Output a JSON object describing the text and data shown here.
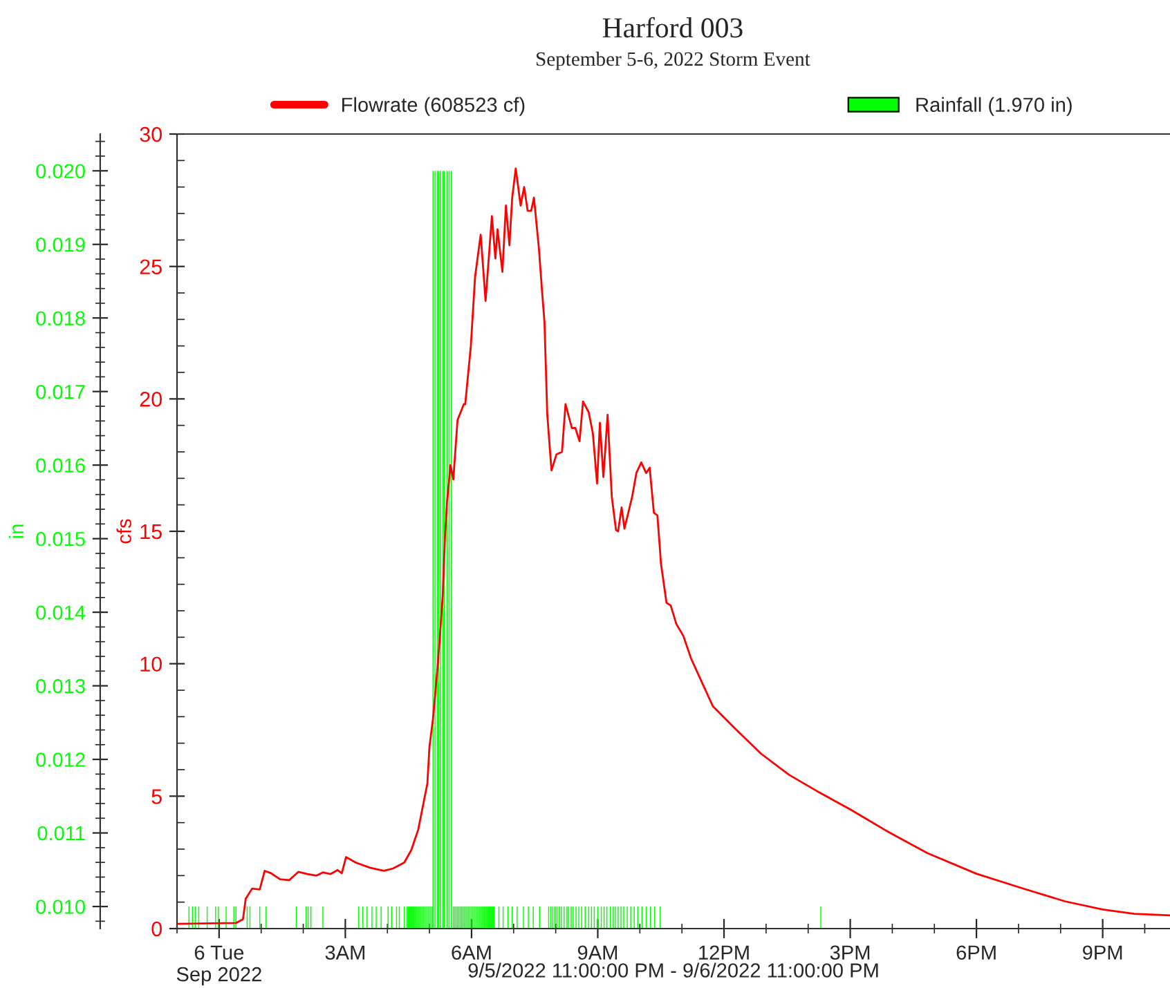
{
  "chart_data": {
    "type": "bar",
    "title": "Harford 003",
    "subtitle": "September 5-6, 2022 Storm Event",
    "xlabel": "9/5/2022 11:00:00 PM - 9/6/2022 11:00:00 PM",
    "ylabel": "in",
    "y2label": "cfs",
    "legend": "top",
    "xlim": [
      "2022-09-05T23:00",
      "2022-09-06T22:36"
    ],
    "xticks": [
      {
        "value": "2022-09-06T00:00",
        "label": "6 Tue\nSep 2022"
      },
      {
        "value": "2022-09-06T03:00",
        "label": "3AM"
      },
      {
        "value": "2022-09-06T06:00",
        "label": "6AM"
      },
      {
        "value": "2022-09-06T09:00",
        "label": "9AM"
      },
      {
        "value": "2022-09-06T12:00",
        "label": "12PM"
      },
      {
        "value": "2022-09-06T15:00",
        "label": "3PM"
      },
      {
        "value": "2022-09-06T18:00",
        "label": "6PM"
      },
      {
        "value": "2022-09-06T21:00",
        "label": "9PM"
      }
    ],
    "ylim": [
      0.0097,
      0.0205
    ],
    "yticks": [
      {
        "value": 0.01,
        "label": "0.010"
      },
      {
        "value": 0.011,
        "label": "0.011"
      },
      {
        "value": 0.012,
        "label": "0.012"
      },
      {
        "value": 0.013,
        "label": "0.013"
      },
      {
        "value": 0.014,
        "label": "0.014"
      },
      {
        "value": 0.015,
        "label": "0.015"
      },
      {
        "value": 0.016,
        "label": "0.016"
      },
      {
        "value": 0.017,
        "label": "0.017"
      },
      {
        "value": 0.018,
        "label": "0.018"
      },
      {
        "value": 0.019,
        "label": "0.019"
      },
      {
        "value": 0.02,
        "label": "0.020"
      }
    ],
    "y2lim": [
      0,
      30
    ],
    "y2ticks": [
      0,
      5,
      10,
      15,
      20,
      25,
      30
    ],
    "series": [
      {
        "name": "Rainfall (1.970 in)",
        "axis": "y",
        "color": "#00ff00",
        "x": [
          "2022-09-05T23:17",
          "2022-09-05T23:22",
          "2022-09-05T23:26",
          "2022-09-05T23:31",
          "2022-09-05T23:43",
          "2022-09-05T23:55",
          "2022-09-05T23:59",
          "2022-09-06T00:10",
          "2022-09-06T00:21",
          "2022-09-06T00:24",
          "2022-09-06T00:40",
          "2022-09-06T00:44",
          "2022-09-06T00:58",
          "2022-09-06T01:07",
          "2022-09-06T01:50",
          "2022-09-06T02:04",
          "2022-09-06T02:07",
          "2022-09-06T02:11",
          "2022-09-06T02:28",
          "2022-09-06T03:19",
          "2022-09-06T03:25",
          "2022-09-06T03:31",
          "2022-09-06T03:38",
          "2022-09-06T03:44",
          "2022-09-06T03:51",
          "2022-09-06T04:01",
          "2022-09-06T04:06",
          "2022-09-06T04:13",
          "2022-09-06T04:17",
          "2022-09-06T04:24",
          "2022-09-06T04:28",
          "2022-09-06T04:30",
          "2022-09-06T04:32",
          "2022-09-06T04:34",
          "2022-09-06T04:36",
          "2022-09-06T04:38",
          "2022-09-06T04:40",
          "2022-09-06T04:42",
          "2022-09-06T04:44",
          "2022-09-06T04:46",
          "2022-09-06T04:48",
          "2022-09-06T04:50",
          "2022-09-06T04:52",
          "2022-09-06T04:54",
          "2022-09-06T04:56",
          "2022-09-06T04:58",
          "2022-09-06T05:00",
          "2022-09-06T05:02",
          "2022-09-06T05:04",
          "2022-09-06T05:05",
          "2022-09-06T05:08",
          "2022-09-06T05:11",
          "2022-09-06T05:13",
          "2022-09-06T05:16",
          "2022-09-06T05:19",
          "2022-09-06T05:21",
          "2022-09-06T05:25",
          "2022-09-06T05:28",
          "2022-09-06T05:31",
          "2022-09-06T05:34",
          "2022-09-06T05:36",
          "2022-09-06T05:38",
          "2022-09-06T05:40",
          "2022-09-06T05:42",
          "2022-09-06T05:44",
          "2022-09-06T05:46",
          "2022-09-06T05:48",
          "2022-09-06T05:50",
          "2022-09-06T05:52",
          "2022-09-06T05:54",
          "2022-09-06T05:56",
          "2022-09-06T05:58",
          "2022-09-06T06:00",
          "2022-09-06T06:02",
          "2022-09-06T06:04",
          "2022-09-06T06:06",
          "2022-09-06T06:08",
          "2022-09-06T06:10",
          "2022-09-06T06:12",
          "2022-09-06T06:14",
          "2022-09-06T06:16",
          "2022-09-06T06:18",
          "2022-09-06T06:20",
          "2022-09-06T06:22",
          "2022-09-06T06:24",
          "2022-09-06T06:26",
          "2022-09-06T06:28",
          "2022-09-06T06:30",
          "2022-09-06T06:32",
          "2022-09-06T06:39",
          "2022-09-06T06:45",
          "2022-09-06T06:52",
          "2022-09-06T06:58",
          "2022-09-06T07:05",
          "2022-09-06T07:14",
          "2022-09-06T07:21",
          "2022-09-06T07:28",
          "2022-09-06T07:37",
          "2022-09-06T07:50",
          "2022-09-06T07:53",
          "2022-09-06T07:56",
          "2022-09-06T07:59",
          "2022-09-06T08:02",
          "2022-09-06T08:05",
          "2022-09-06T08:08",
          "2022-09-06T08:12",
          "2022-09-06T08:16",
          "2022-09-06T08:18",
          "2022-09-06T08:22",
          "2022-09-06T08:25",
          "2022-09-06T08:29",
          "2022-09-06T08:33",
          "2022-09-06T08:37",
          "2022-09-06T08:42",
          "2022-09-06T08:47",
          "2022-09-06T08:51",
          "2022-09-06T08:55",
          "2022-09-06T09:00",
          "2022-09-06T09:05",
          "2022-09-06T09:09",
          "2022-09-06T09:13",
          "2022-09-06T09:18",
          "2022-09-06T09:22",
          "2022-09-06T09:25",
          "2022-09-06T09:29",
          "2022-09-06T09:33",
          "2022-09-06T09:37",
          "2022-09-06T09:42",
          "2022-09-06T09:47",
          "2022-09-06T09:52",
          "2022-09-06T09:57",
          "2022-09-06T10:03",
          "2022-09-06T10:09",
          "2022-09-06T10:15",
          "2022-09-06T10:21",
          "2022-09-06T10:29",
          "2022-09-06T14:18"
        ],
        "values": [
          0.01,
          0.01,
          0.01,
          0.01,
          0.01,
          0.01,
          0.01,
          0.01,
          0.01,
          0.01,
          0.01,
          0.01,
          0.01,
          0.01,
          0.01,
          0.01,
          0.01,
          0.01,
          0.01,
          0.01,
          0.01,
          0.01,
          0.01,
          0.01,
          0.01,
          0.01,
          0.01,
          0.01,
          0.01,
          0.01,
          0.01,
          0.01,
          0.01,
          0.01,
          0.01,
          0.01,
          0.01,
          0.01,
          0.01,
          0.01,
          0.01,
          0.01,
          0.01,
          0.01,
          0.01,
          0.01,
          0.01,
          0.01,
          0.01,
          0.02,
          0.02,
          0.02,
          0.02,
          0.02,
          0.02,
          0.02,
          0.02,
          0.02,
          0.02,
          0.01,
          0.01,
          0.01,
          0.01,
          0.01,
          0.01,
          0.01,
          0.01,
          0.01,
          0.01,
          0.01,
          0.01,
          0.01,
          0.01,
          0.01,
          0.01,
          0.01,
          0.01,
          0.01,
          0.01,
          0.01,
          0.01,
          0.01,
          0.01,
          0.01,
          0.01,
          0.01,
          0.01,
          0.01,
          0.01,
          0.01,
          0.01,
          0.01,
          0.01,
          0.01,
          0.01,
          0.01,
          0.01,
          0.01,
          0.01,
          0.01,
          0.01,
          0.01,
          0.01,
          0.01,
          0.01,
          0.01,
          0.01,
          0.01,
          0.01,
          0.01,
          0.01,
          0.01,
          0.01,
          0.01,
          0.01,
          0.01,
          0.01,
          0.01,
          0.01,
          0.01,
          0.01,
          0.01,
          0.01,
          0.01,
          0.01,
          0.01,
          0.01,
          0.01,
          0.01,
          0.01,
          0.01,
          0.01,
          0.01,
          0.01,
          0.01,
          0.01,
          0.01
        ]
      },
      {
        "name": "Flowrate (608523 cf)",
        "type": "line",
        "axis": "y2",
        "color": "#ff0000",
        "x": [
          "2022-09-05T23:02",
          "2022-09-06T00:24",
          "2022-09-06T00:34",
          "2022-09-06T00:38",
          "2022-09-06T00:47",
          "2022-09-06T00:58",
          "2022-09-06T01:05",
          "2022-09-06T01:14",
          "2022-09-06T01:27",
          "2022-09-06T01:40",
          "2022-09-06T01:53",
          "2022-09-06T02:06",
          "2022-09-06T02:19",
          "2022-09-06T02:28",
          "2022-09-06T02:39",
          "2022-09-06T02:49",
          "2022-09-06T02:55",
          "2022-09-06T03:01",
          "2022-09-06T03:15",
          "2022-09-06T03:35",
          "2022-09-06T03:55",
          "2022-09-06T04:08",
          "2022-09-06T04:24",
          "2022-09-06T04:34",
          "2022-09-06T04:44",
          "2022-09-06T04:57",
          "2022-09-06T05:00",
          "2022-09-06T05:05",
          "2022-09-06T05:08",
          "2022-09-06T05:12",
          "2022-09-06T05:19",
          "2022-09-06T05:22",
          "2022-09-06T05:25",
          "2022-09-06T05:30",
          "2022-09-06T05:34",
          "2022-09-06T05:40",
          "2022-09-06T05:49",
          "2022-09-06T05:51",
          "2022-09-06T05:59",
          "2022-09-06T06:05",
          "2022-09-06T06:13",
          "2022-09-06T06:20",
          "2022-09-06T06:29",
          "2022-09-06T06:34",
          "2022-09-06T06:37",
          "2022-09-06T06:44",
          "2022-09-06T06:49",
          "2022-09-06T06:54",
          "2022-09-06T06:58",
          "2022-09-06T07:03",
          "2022-09-06T07:10",
          "2022-09-06T07:15",
          "2022-09-06T07:20",
          "2022-09-06T07:25",
          "2022-09-06T07:29",
          "2022-09-06T07:36",
          "2022-09-06T07:41",
          "2022-09-06T07:44",
          "2022-09-06T07:48",
          "2022-09-06T07:54",
          "2022-09-06T08:01",
          "2022-09-06T08:09",
          "2022-09-06T08:14",
          "2022-09-06T08:23",
          "2022-09-06T08:28",
          "2022-09-06T08:34",
          "2022-09-06T08:39",
          "2022-09-06T08:47",
          "2022-09-06T08:53",
          "2022-09-06T08:59",
          "2022-09-06T09:03",
          "2022-09-06T09:08",
          "2022-09-06T09:14",
          "2022-09-06T09:20",
          "2022-09-06T09:26",
          "2022-09-06T09:29",
          "2022-09-06T09:34",
          "2022-09-06T09:38",
          "2022-09-06T09:49",
          "2022-09-06T09:55",
          "2022-09-06T10:02",
          "2022-09-06T10:09",
          "2022-09-06T10:14",
          "2022-09-06T10:20",
          "2022-09-06T10:25",
          "2022-09-06T10:29",
          "2022-09-06T10:30",
          "2022-09-06T10:38",
          "2022-09-06T10:44",
          "2022-09-06T10:52",
          "2022-09-06T11:02",
          "2022-09-06T11:13",
          "2022-09-06T11:25",
          "2022-09-06T11:44",
          "2022-09-06T12:14",
          "2022-09-06T12:53",
          "2022-09-06T13:33",
          "2022-09-06T14:12",
          "2022-09-06T15:00",
          "2022-09-06T15:51",
          "2022-09-06T16:50",
          "2022-09-06T18:00",
          "2022-09-06T19:08",
          "2022-09-06T20:06",
          "2022-09-06T21:00",
          "2022-09-06T21:45",
          "2022-09-06T22:36"
        ],
        "values": [
          0.18,
          0.21,
          0.35,
          1.13,
          1.51,
          1.48,
          2.18,
          2.09,
          1.86,
          1.83,
          2.14,
          2.06,
          2.0,
          2.12,
          2.06,
          2.21,
          2.09,
          2.7,
          2.49,
          2.3,
          2.18,
          2.27,
          2.49,
          2.96,
          3.74,
          5.48,
          6.87,
          7.92,
          8.8,
          10.0,
          12.6,
          14.7,
          16.1,
          17.5,
          16.96,
          19.2,
          19.8,
          19.8,
          22.0,
          24.6,
          26.2,
          23.7,
          26.9,
          25.3,
          26.4,
          24.8,
          27.3,
          25.8,
          27.6,
          28.7,
          27.3,
          28.0,
          27.1,
          27.1,
          27.6,
          25.7,
          23.9,
          22.9,
          19.4,
          17.3,
          17.9,
          18.0,
          19.8,
          18.9,
          18.9,
          18.4,
          19.9,
          19.5,
          18.7,
          16.8,
          19.1,
          17.05,
          19.4,
          16.3,
          15.05,
          15.0,
          15.9,
          15.1,
          16.3,
          17.2,
          17.6,
          17.2,
          17.4,
          15.7,
          15.6,
          14.2,
          13.8,
          12.3,
          12.2,
          11.5,
          11.05,
          10.2,
          9.5,
          8.4,
          7.6,
          6.6,
          5.8,
          5.2,
          4.5,
          3.7,
          2.85,
          2.07,
          1.5,
          1.03,
          0.72,
          0.56,
          0.5
        ]
      }
    ]
  }
}
